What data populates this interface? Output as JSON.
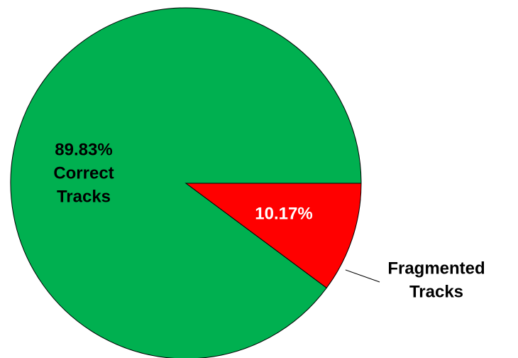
{
  "chart_data": {
    "type": "pie",
    "categories": [
      "Correct Tracks",
      "Fragmented Tracks"
    ],
    "values": [
      89.83,
      10.17
    ],
    "value_labels": [
      "89.83%",
      "10.17%"
    ],
    "colors": [
      "#00b050",
      "#ff0000"
    ]
  }
}
